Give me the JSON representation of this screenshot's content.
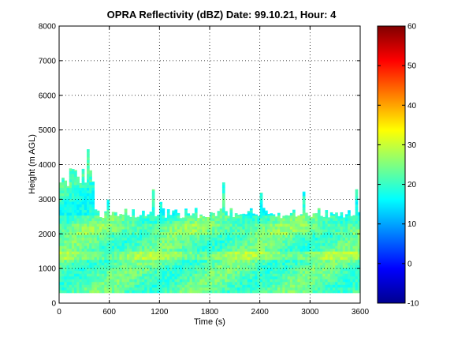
{
  "chart_data": {
    "type": "heatmap",
    "title": "OPRA Reflectivity (dBZ)  Date: 99.10.21, Hour: 4",
    "xlabel": "Time (s)",
    "ylabel": "Height (m AGL)",
    "xlim": [
      0,
      3600
    ],
    "ylim": [
      0,
      8000
    ],
    "xticks": [
      "0",
      "600",
      "1200",
      "1800",
      "2400",
      "3000",
      "3600"
    ],
    "yticks": [
      "0",
      "1000",
      "2000",
      "3000",
      "4000",
      "5000",
      "6000",
      "7000",
      "8000"
    ],
    "grid": "dotted",
    "colorbar": {
      "colormap": "jet",
      "min": -10,
      "max": 60,
      "ticks": [
        "-10",
        "0",
        "10",
        "20",
        "30",
        "40",
        "50",
        "60"
      ]
    },
    "echo_summary": {
      "base_height_m": 300,
      "typical_top_height_m": 2600,
      "max_top_height_m": 4000,
      "typical_dbz_range": [
        20,
        32
      ]
    }
  }
}
